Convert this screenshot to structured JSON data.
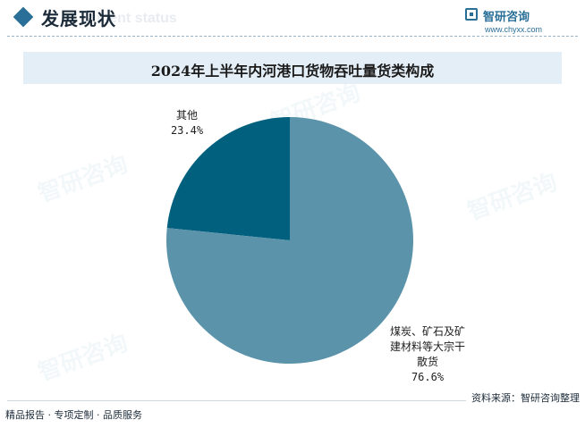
{
  "header": {
    "section_title": "发展现状",
    "section_subtitle": "ment status",
    "brand_name": "智研咨询",
    "brand_url": "www.chyxx.com"
  },
  "chart_data": {
    "type": "pie",
    "title": "2024年上半年内河港口货物吞吐量货类构成",
    "slices": [
      {
        "label": "其他",
        "label_display": "其他",
        "value": 23.4,
        "value_text": "23.4%",
        "color": "#02607f"
      },
      {
        "label": "煤炭、矿石及矿建材料等大宗干散货",
        "label_display": "煤炭、矿石及矿\n建材料等大宗干\n散货",
        "value": 76.6,
        "value_text": "76.6%",
        "color": "#5b93aa"
      }
    ],
    "start_angle_deg": 0,
    "direction": "counterclockwise"
  },
  "footer": {
    "source": "资料来源：智研咨询整理",
    "slogan": "精品报告 · 专项定制 · 品质服务"
  },
  "watermark_text": "智研咨询",
  "colors": {
    "accent": "#2a6f97",
    "title_bar": "#e4eef6"
  }
}
